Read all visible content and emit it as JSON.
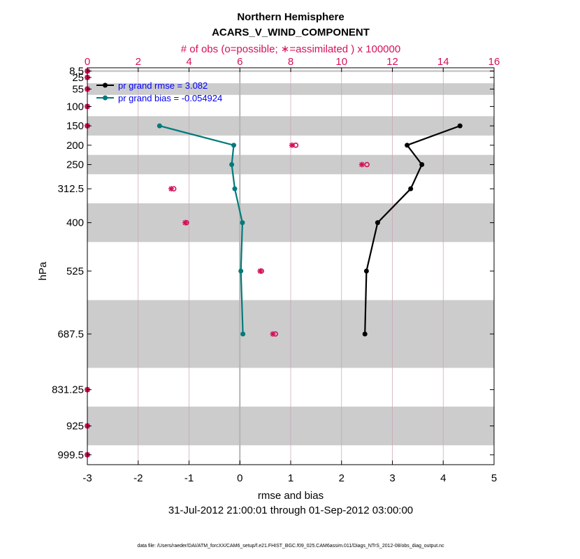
{
  "chart_data": {
    "type": "line",
    "title": "Northern Hemisphere",
    "subtitle": "ACARS_V_WIND_COMPONENT",
    "top_axis_label": "# of obs (o=possible; ∗=assimilated ) x 100000",
    "xlabel": "rmse and bias",
    "ylabel": "hPa",
    "date_range": "31-Jul-2012 21:00:01 through 01-Sep-2012 03:00:00",
    "footer": "data file: /Users/raeder/DAI/ATM_forcXX/CAM6_setup/f.e21.FHIST_BGC.f09_025.CAM6assim.011/Diags_NTrS_2012-08/obs_diag_output.nc",
    "xlim": [
      -3,
      5
    ],
    "x_ticks": [
      "-3",
      "-2",
      "-1",
      "0",
      "1",
      "2",
      "3",
      "4",
      "5"
    ],
    "top_xlim": [
      0,
      16
    ],
    "top_ticks": [
      "0",
      "2",
      "4",
      "6",
      "8",
      "10",
      "12",
      "14",
      "16"
    ],
    "ylim_hPa": [
      1025,
      0
    ],
    "levels": [
      8.5,
      25,
      55,
      100,
      150,
      200,
      250,
      312.5,
      400,
      525,
      687.5,
      831.25,
      925,
      999.5
    ],
    "level_labels": [
      "8.5",
      "25",
      "55",
      "100",
      "150",
      "200",
      "250",
      "312.5",
      "400",
      "525",
      "687.5",
      "831.25",
      "925",
      "999.5"
    ],
    "shaded_bands_hPa": [
      [
        6,
        11
      ],
      [
        40,
        70
      ],
      [
        125,
        175
      ],
      [
        225,
        275
      ],
      [
        350,
        450
      ],
      [
        600,
        775
      ],
      [
        875,
        975
      ]
    ],
    "series": [
      {
        "name": "pr grand rmse",
        "legend": "pr grand rmse = 3.082",
        "color": "#000000",
        "levels": [
          150,
          200,
          250,
          312.5,
          400,
          525,
          687.5
        ],
        "values": [
          4.33,
          3.29,
          3.58,
          3.36,
          2.71,
          2.49,
          2.46
        ]
      },
      {
        "name": "pr grand bias",
        "legend": "pr grand bias = -0.054924",
        "color": "#007a7a",
        "levels": [
          150,
          200,
          250,
          312.5,
          400,
          525,
          687.5
        ],
        "values": [
          -1.58,
          -0.12,
          -0.16,
          -0.1,
          0.05,
          0.02,
          0.06
        ]
      }
    ],
    "obs_counts_x100000": {
      "levels": [
        8.5,
        25,
        55,
        100,
        150,
        200,
        250,
        312.5,
        400,
        525,
        687.5,
        831.25,
        925,
        999.5
      ],
      "possible": [
        0,
        0,
        0,
        0,
        0,
        8.2,
        11.0,
        3.4,
        3.9,
        6.85,
        7.4,
        0,
        0,
        0
      ],
      "assimilated": [
        0,
        0,
        0,
        0,
        0,
        8.05,
        10.8,
        3.3,
        3.85,
        6.8,
        7.3,
        0,
        0,
        0
      ]
    },
    "colors": {
      "accent": "#d6105a",
      "band": "#cccccc",
      "grid": "#c8a0b4",
      "zero_line": "#b4b4b4"
    }
  }
}
